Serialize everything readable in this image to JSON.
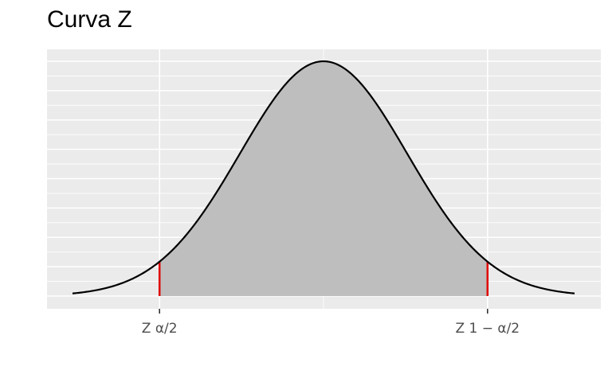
{
  "chart_data": {
    "type": "area",
    "title": "Curva Z",
    "xlabel": "",
    "ylabel": "",
    "distribution": "standard normal density",
    "xlim": [
      -3,
      3
    ],
    "ylim": [
      0,
      0.4
    ],
    "shaded_interval": [
      -1.96,
      1.96
    ],
    "critical_values": [
      -1.96,
      1.96
    ],
    "x_tick_labels": [
      {
        "x": -1.96,
        "label": "Z α/2"
      },
      {
        "x": 1.96,
        "label": "Z 1 − α/2"
      }
    ],
    "grid": true,
    "legend": "none"
  },
  "colors": {
    "panel_background": "#ebebeb",
    "grid": "#ffffff",
    "fill": "#bebebe",
    "curve": "#000000",
    "critical_line": "#e00000"
  }
}
